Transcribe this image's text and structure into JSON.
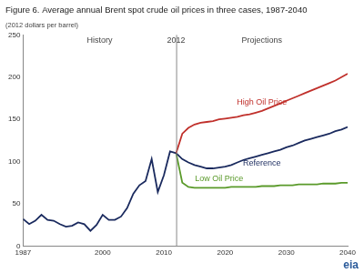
{
  "chart_data": {
    "type": "line",
    "title": "Figure 6. Average annual Brent spot crude oil prices in three cases, 1987-2040",
    "ylabel": "(2012 dollars per barrel)",
    "x": [
      1987,
      1988,
      1989,
      1990,
      1991,
      1992,
      1993,
      1994,
      1995,
      1996,
      1997,
      1998,
      1999,
      2000,
      2001,
      2002,
      2003,
      2004,
      2005,
      2006,
      2007,
      2008,
      2009,
      2010,
      2011,
      2012,
      2013,
      2014,
      2015,
      2016,
      2017,
      2018,
      2019,
      2020,
      2021,
      2022,
      2023,
      2024,
      2025,
      2026,
      2027,
      2028,
      2029,
      2030,
      2031,
      2032,
      2033,
      2034,
      2035,
      2036,
      2037,
      2038,
      2039,
      2040
    ],
    "series": [
      {
        "name": "High Oil Price",
        "color": "#c0302b",
        "values": [
          null,
          null,
          null,
          null,
          null,
          null,
          null,
          null,
          null,
          null,
          null,
          null,
          null,
          null,
          null,
          null,
          null,
          null,
          null,
          null,
          null,
          null,
          null,
          null,
          null,
          110,
          133,
          140,
          144,
          146,
          147,
          148,
          150,
          151,
          152,
          153,
          155,
          156,
          158,
          160,
          163,
          166,
          169,
          172,
          175,
          178,
          181,
          184,
          187,
          190,
          193,
          196,
          200,
          204
        ]
      },
      {
        "name": "Reference",
        "color": "#1a2a5e",
        "values": [
          32,
          26,
          30,
          37,
          31,
          30,
          26,
          23,
          24,
          28,
          26,
          18,
          25,
          37,
          31,
          31,
          35,
          45,
          62,
          72,
          77,
          103,
          64,
          84,
          112,
          110,
          103,
          99,
          96,
          94,
          92,
          92,
          93,
          94,
          96,
          99,
          102,
          104,
          106,
          108,
          110,
          112,
          114,
          117,
          119,
          122,
          125,
          127,
          129,
          131,
          133,
          136,
          138,
          141
        ]
      },
      {
        "name": "Low Oil Price",
        "color": "#5a9a2a",
        "values": [
          null,
          null,
          null,
          null,
          null,
          null,
          null,
          null,
          null,
          null,
          null,
          null,
          null,
          null,
          null,
          null,
          null,
          null,
          null,
          null,
          null,
          null,
          null,
          null,
          null,
          110,
          75,
          70,
          69,
          69,
          69,
          69,
          69,
          69,
          70,
          70,
          70,
          70,
          70,
          71,
          71,
          71,
          72,
          72,
          72,
          73,
          73,
          73,
          73,
          74,
          74,
          74,
          75,
          75
        ]
      }
    ],
    "xlim": [
      1987,
      2040
    ],
    "xticks": [
      1987,
      2000,
      2010,
      2020,
      2030,
      2040
    ],
    "ylim": [
      0,
      250
    ],
    "yticks": [
      0,
      50,
      100,
      150,
      200,
      250
    ],
    "grid": false,
    "marker": "none",
    "line_style": "solid",
    "annotations": [
      {
        "text": "History"
      },
      {
        "text": "2012",
        "x": 2012
      },
      {
        "text": "Projections"
      }
    ],
    "logo": "eia"
  }
}
